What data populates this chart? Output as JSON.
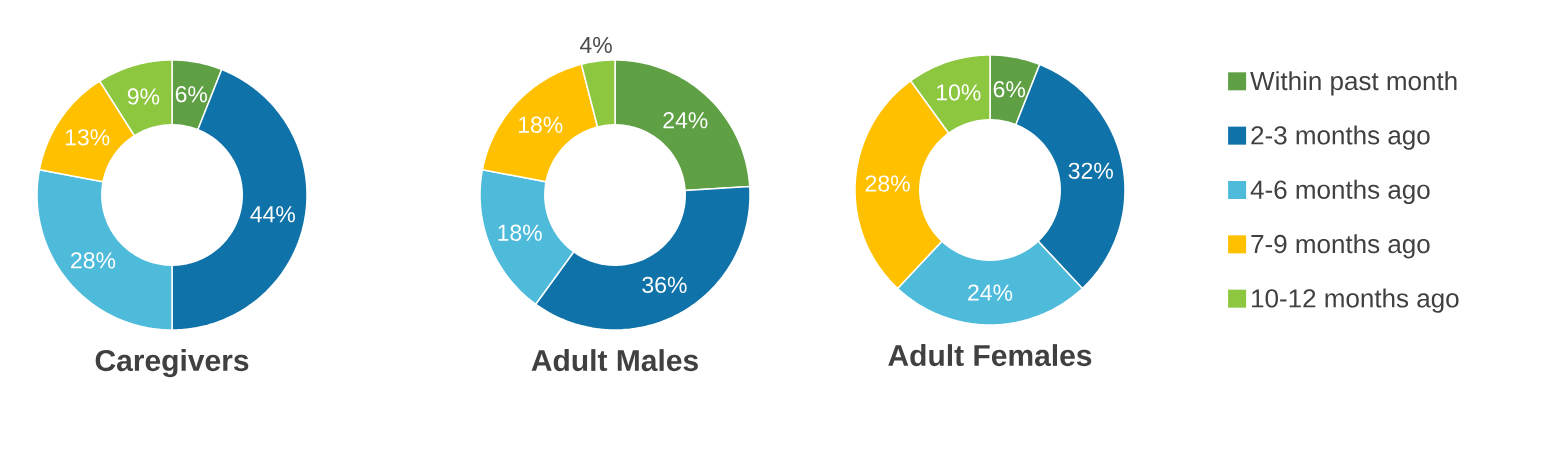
{
  "chart_data": [
    {
      "type": "donut",
      "title": "Caregivers",
      "categories": [
        null,
        null,
        null,
        null,
        null
      ],
      "values": [
        6,
        44,
        28,
        13,
        9
      ],
      "colors": [
        "#5fa045",
        "#0f72a8",
        "#4ebbdb",
        "#ffc000",
        "#8dc63f"
      ],
      "value_labels": [
        "6%",
        "44%",
        "28%",
        "13%",
        "9%"
      ],
      "legend": false
    },
    {
      "type": "donut",
      "title": "Adult Males",
      "categories": [
        null,
        null,
        null,
        null,
        null
      ],
      "values": [
        24,
        36,
        18,
        18,
        4
      ],
      "colors": [
        "#5fa045",
        "#0f72a8",
        "#4ebbdb",
        "#ffc000",
        "#8dc63f"
      ],
      "value_labels": [
        "24%",
        "36%",
        "18%",
        "18%",
        "4%"
      ],
      "legend": false
    },
    {
      "type": "donut",
      "title": "Adult Females",
      "categories": [
        "Within past month",
        "2-3 months ago",
        "4-6 months ago",
        "7-9 months ago",
        "10-12 months ago"
      ],
      "values": [
        6,
        32,
        24,
        28,
        10
      ],
      "colors": [
        "#5fa045",
        "#0f72a8",
        "#4ebbdb",
        "#ffc000",
        "#8dc63f"
      ],
      "value_labels": [
        "6%",
        "32%",
        "24%",
        "28%",
        "10%"
      ],
      "legend": "right"
    }
  ]
}
